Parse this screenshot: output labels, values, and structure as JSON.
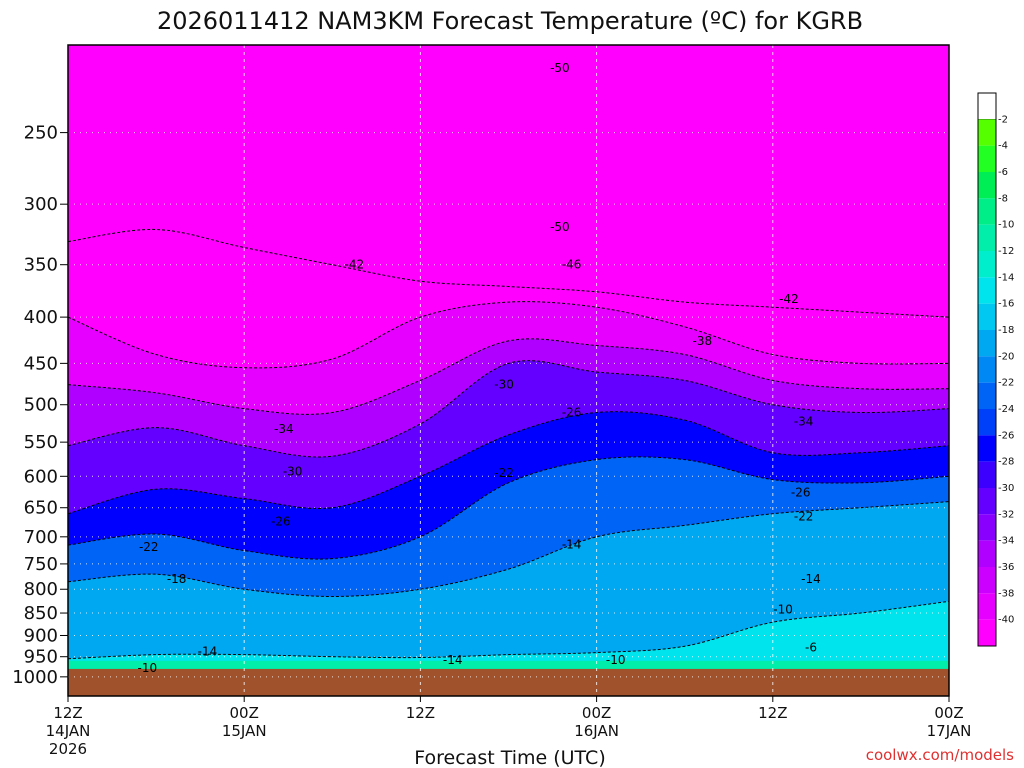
{
  "chart_data": {
    "type": "heatmap",
    "title": "2026011412 NAM3KM Forecast Temperature (ºC) for KGRB",
    "xlabel": "Forecast Time (UTC)",
    "ylabel": "",
    "credit": "coolwx.com/models",
    "x_range_hours": [
      0,
      60
    ],
    "y_range_hpa": [
      200,
      1050
    ],
    "y_scale": "log-pressure (inverted)",
    "grid": true,
    "legend_position": "right",
    "y_ticks": [
      250,
      300,
      350,
      400,
      450,
      500,
      550,
      600,
      650,
      700,
      750,
      800,
      850,
      900,
      950,
      1000
    ],
    "x_ticks": [
      {
        "hour": 0,
        "line1": "12Z",
        "line2": "14JAN",
        "line3": "2026"
      },
      {
        "hour": 12,
        "line1": "00Z",
        "line2": "15JAN",
        "line3": ""
      },
      {
        "hour": 24,
        "line1": "12Z",
        "line2": "",
        "line3": ""
      },
      {
        "hour": 36,
        "line1": "00Z",
        "line2": "16JAN",
        "line3": ""
      },
      {
        "hour": 48,
        "line1": "12Z",
        "line2": "",
        "line3": ""
      },
      {
        "hour": 60,
        "line1": "00Z",
        "line2": "17JAN",
        "line3": ""
      }
    ],
    "colorbar": [
      {
        "label": "-2",
        "color": "#55ff00"
      },
      {
        "label": "-4",
        "color": "#22ff22"
      },
      {
        "label": "-6",
        "color": "#00ee55"
      },
      {
        "label": "-8",
        "color": "#00ee88"
      },
      {
        "label": "-10",
        "color": "#00eeaa"
      },
      {
        "label": "-12",
        "color": "#00eecc"
      },
      {
        "label": "-14",
        "color": "#00e4ee"
      },
      {
        "label": "-16",
        "color": "#00c8f0"
      },
      {
        "label": "-18",
        "color": "#00a8f2"
      },
      {
        "label": "-20",
        "color": "#0088f4"
      },
      {
        "label": "-22",
        "color": "#0064f6"
      },
      {
        "label": "-24",
        "color": "#0040f8"
      },
      {
        "label": "-26",
        "color": "#0000ff"
      },
      {
        "label": "-28",
        "color": "#3c00ff"
      },
      {
        "label": "-30",
        "color": "#6400ff"
      },
      {
        "label": "-32",
        "color": "#8a00ff"
      },
      {
        "label": "-34",
        "color": "#b000ff"
      },
      {
        "label": "-36",
        "color": "#cc00ff"
      },
      {
        "label": "-38",
        "color": "#e600ff"
      },
      {
        "label": "-40",
        "color": "#ff00ff"
      }
    ],
    "colorbar_top_color": "#ffffff",
    "below_range_color": "#ff00ff",
    "ground_color": "#a0522d",
    "ground_pressure_hpa": 980,
    "isotherms": [
      {
        "temp": -14,
        "points": [
          [
            0,
            955
          ],
          [
            6,
            945
          ],
          [
            12,
            945
          ],
          [
            18,
            950
          ],
          [
            24,
            952
          ],
          [
            30,
            945
          ],
          [
            36,
            940
          ],
          [
            42,
            925
          ],
          [
            48,
            870
          ],
          [
            54,
            850
          ],
          [
            60,
            825
          ]
        ]
      },
      {
        "temp": -18,
        "points": [
          [
            0,
            785
          ],
          [
            6,
            770
          ],
          [
            12,
            800
          ],
          [
            18,
            815
          ],
          [
            24,
            800
          ],
          [
            30,
            760
          ],
          [
            36,
            700
          ],
          [
            42,
            680
          ],
          [
            48,
            660
          ],
          [
            54,
            650
          ],
          [
            60,
            640
          ]
        ]
      },
      {
        "temp": -22,
        "points": [
          [
            0,
            715
          ],
          [
            6,
            695
          ],
          [
            12,
            725
          ],
          [
            18,
            740
          ],
          [
            24,
            700
          ],
          [
            30,
            610
          ],
          [
            36,
            575
          ],
          [
            42,
            575
          ],
          [
            48,
            605
          ],
          [
            54,
            610
          ],
          [
            60,
            600
          ]
        ]
      },
      {
        "temp": -26,
        "points": [
          [
            0,
            660
          ],
          [
            6,
            620
          ],
          [
            12,
            635
          ],
          [
            18,
            650
          ],
          [
            24,
            600
          ],
          [
            30,
            540
          ],
          [
            36,
            510
          ],
          [
            42,
            520
          ],
          [
            48,
            565
          ],
          [
            54,
            565
          ],
          [
            60,
            555
          ]
        ]
      },
      {
        "temp": -30,
        "points": [
          [
            0,
            555
          ],
          [
            6,
            530
          ],
          [
            12,
            555
          ],
          [
            18,
            570
          ],
          [
            24,
            525
          ],
          [
            30,
            450
          ],
          [
            36,
            460
          ],
          [
            42,
            470
          ],
          [
            48,
            500
          ],
          [
            54,
            510
          ],
          [
            60,
            505
          ]
        ]
      },
      {
        "temp": -34,
        "points": [
          [
            0,
            475
          ],
          [
            6,
            485
          ],
          [
            12,
            505
          ],
          [
            18,
            510
          ],
          [
            24,
            470
          ],
          [
            30,
            425
          ],
          [
            36,
            430
          ],
          [
            42,
            440
          ],
          [
            48,
            470
          ],
          [
            54,
            480
          ],
          [
            60,
            480
          ]
        ]
      },
      {
        "temp": -38,
        "points": [
          [
            0,
            400
          ],
          [
            6,
            440
          ],
          [
            12,
            455
          ],
          [
            18,
            445
          ],
          [
            24,
            400
          ],
          [
            30,
            385
          ],
          [
            36,
            390
          ],
          [
            42,
            410
          ],
          [
            48,
            440
          ],
          [
            54,
            450
          ],
          [
            60,
            450
          ]
        ]
      },
      {
        "temp": -42,
        "points": [
          [
            0,
            330
          ],
          [
            6,
            320
          ],
          [
            12,
            335
          ],
          [
            18,
            350
          ],
          [
            24,
            365
          ],
          [
            30,
            370
          ],
          [
            36,
            375
          ],
          [
            42,
            385
          ],
          [
            48,
            390
          ],
          [
            54,
            395
          ],
          [
            60,
            400
          ]
        ]
      }
    ],
    "contour_labels": [
      {
        "text": "-50",
        "hour": 33.5,
        "hpa": 212
      },
      {
        "text": "-50",
        "hour": 33.5,
        "hpa": 318
      },
      {
        "text": "-46",
        "hour": 34.3,
        "hpa": 350
      },
      {
        "text": "-42",
        "hour": 19.5,
        "hpa": 350
      },
      {
        "text": "-42",
        "hour": 49.1,
        "hpa": 382
      },
      {
        "text": "-38",
        "hour": 43.2,
        "hpa": 425
      },
      {
        "text": "-30",
        "hour": 29.7,
        "hpa": 475
      },
      {
        "text": "-26",
        "hour": 34.3,
        "hpa": 510
      },
      {
        "text": "-34",
        "hour": 14.7,
        "hpa": 532
      },
      {
        "text": "-34",
        "hour": 50.1,
        "hpa": 522
      },
      {
        "text": "-30",
        "hour": 15.3,
        "hpa": 593
      },
      {
        "text": "-22",
        "hour": 29.7,
        "hpa": 595
      },
      {
        "text": "-26",
        "hour": 49.9,
        "hpa": 625
      },
      {
        "text": "-26",
        "hour": 14.5,
        "hpa": 673
      },
      {
        "text": "-22",
        "hour": 50.1,
        "hpa": 665
      },
      {
        "text": "-22",
        "hour": 5.5,
        "hpa": 718
      },
      {
        "text": "-14",
        "hour": 34.3,
        "hpa": 714
      },
      {
        "text": "-18",
        "hour": 7.4,
        "hpa": 779
      },
      {
        "text": "-14",
        "hour": 50.6,
        "hpa": 779
      },
      {
        "text": "-10",
        "hour": 48.7,
        "hpa": 842
      },
      {
        "text": "-14",
        "hour": 9.5,
        "hpa": 937
      },
      {
        "text": "-6",
        "hour": 50.6,
        "hpa": 928
      },
      {
        "text": "-14",
        "hour": 26.2,
        "hpa": 958
      },
      {
        "text": "-10",
        "hour": 37.3,
        "hpa": 958
      },
      {
        "text": "-10",
        "hour": 5.4,
        "hpa": 978
      }
    ]
  }
}
